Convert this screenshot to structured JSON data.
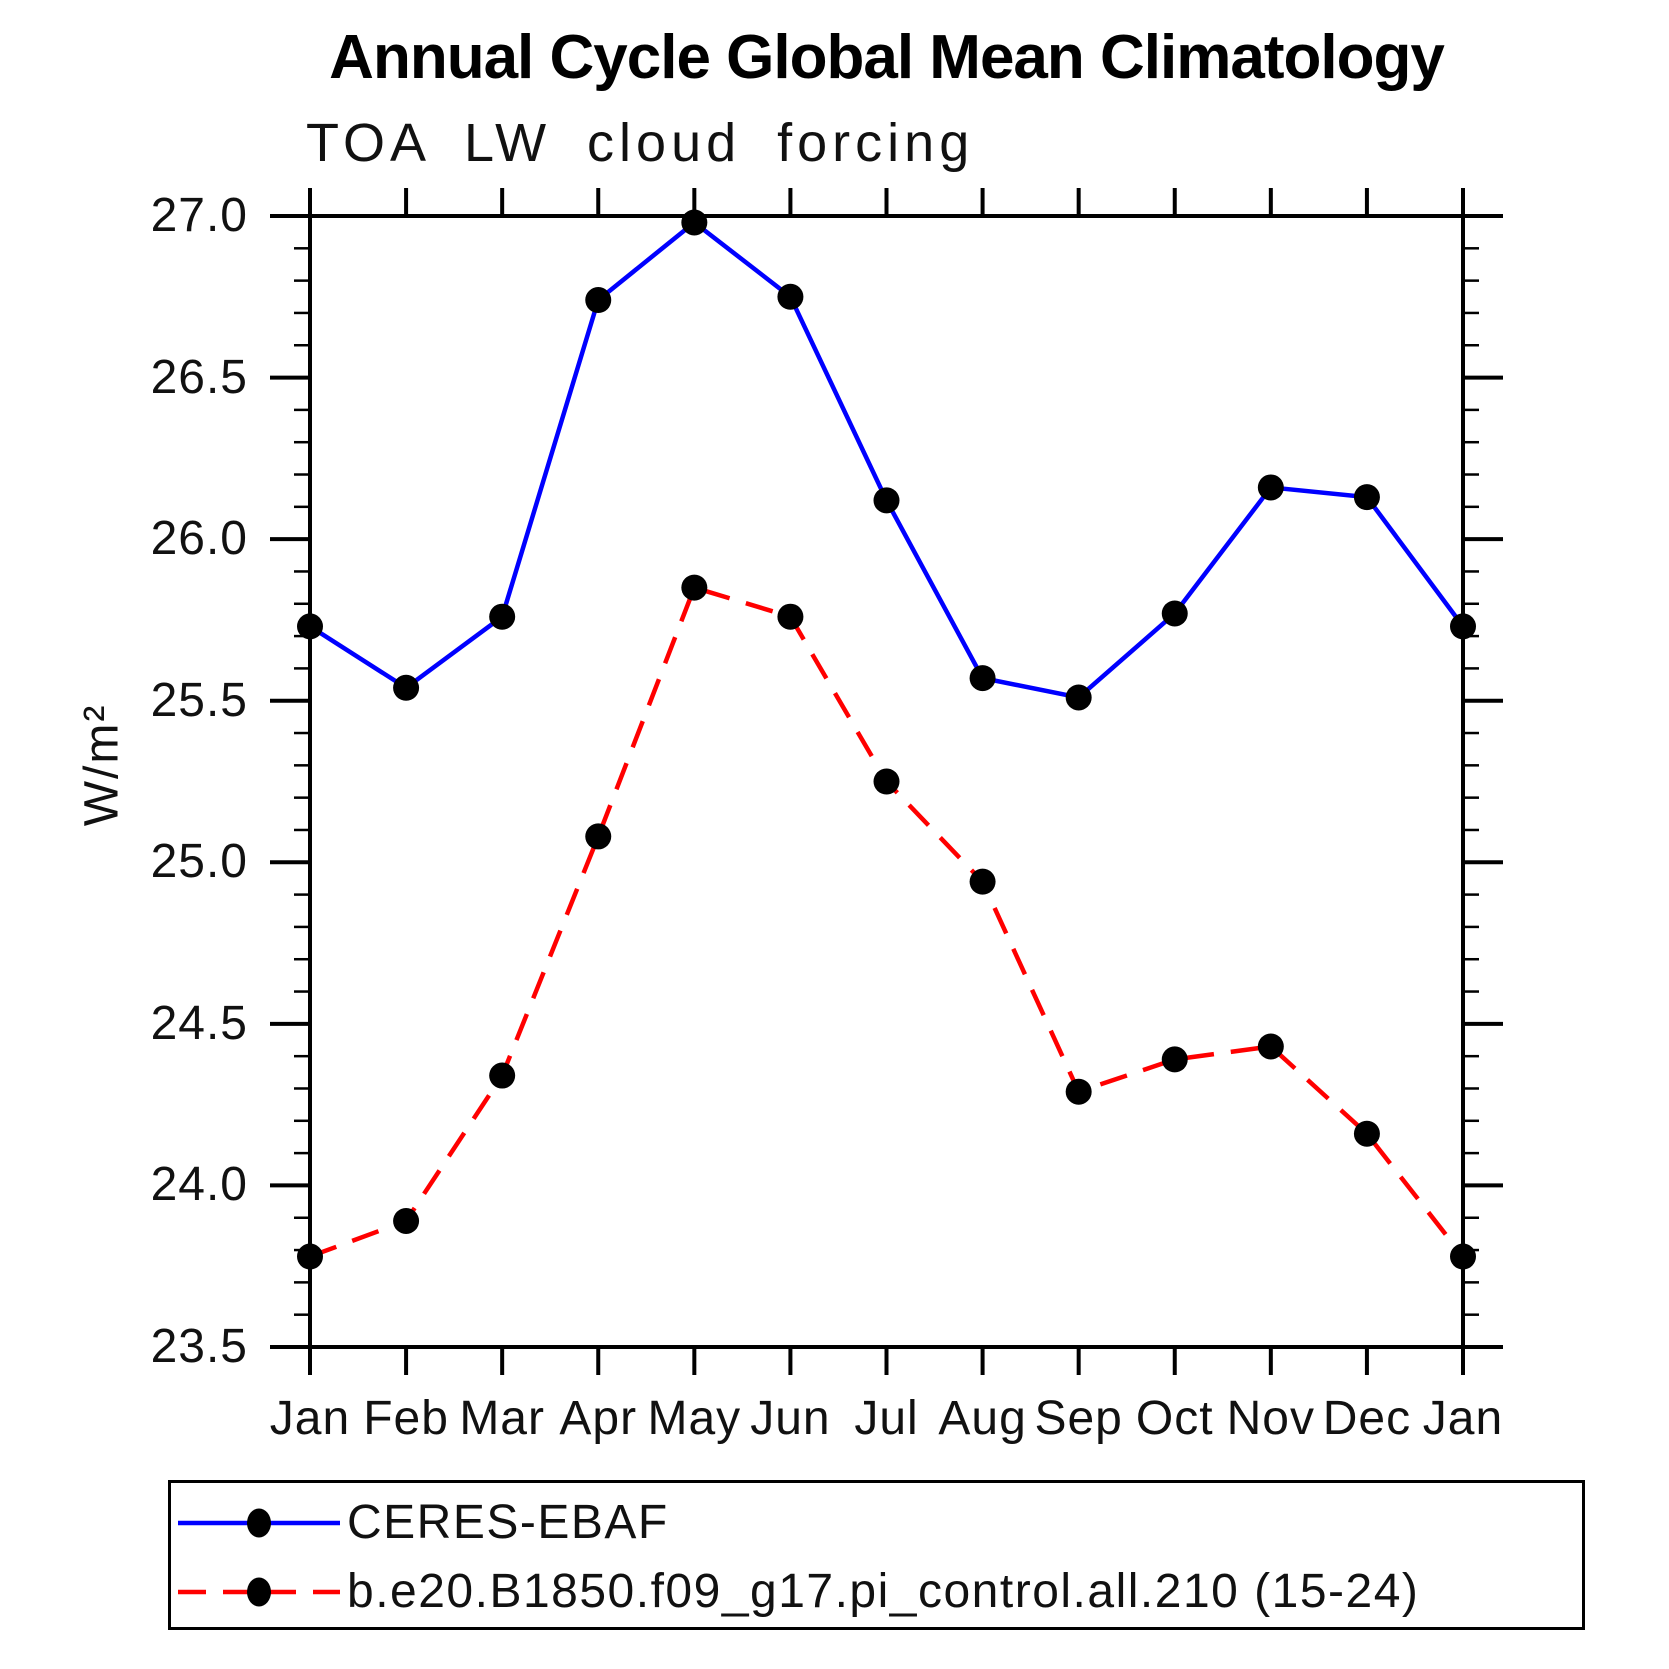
{
  "chart_data": {
    "type": "line",
    "title": "Annual Cycle Global Mean Climatology",
    "subtitle": "TOA LW cloud forcing",
    "ylabel": "W/m²",
    "categories": [
      "Jan",
      "Feb",
      "Mar",
      "Apr",
      "May",
      "Jun",
      "Jul",
      "Aug",
      "Sep",
      "Oct",
      "Nov",
      "Dec",
      "Jan"
    ],
    "ylim": [
      23.5,
      27.0
    ],
    "ytick_labels": [
      "27.0",
      "26.5",
      "26.0",
      "25.5",
      "25.0",
      "24.5",
      "24.0",
      "23.5"
    ],
    "ytick_step": 0.5,
    "yminor_step": 0.1,
    "grid": false,
    "legend_position": "bottom",
    "frame_color": "#000000",
    "marker_color": "#000000",
    "series": [
      {
        "name": "CERES-EBAF",
        "color": "#0000ff",
        "line_style": "solid",
        "marker": "filled-circle",
        "values": [
          25.73,
          25.54,
          25.76,
          26.74,
          26.98,
          26.75,
          26.12,
          25.57,
          25.51,
          25.77,
          26.16,
          26.13,
          25.73
        ]
      },
      {
        "name": "b.e20.B1850.f09_g17.pi_control.all.210 (15-24)",
        "color": "#ff0000",
        "line_style": "dashed",
        "marker": "filled-circle",
        "values": [
          23.78,
          23.89,
          24.34,
          25.08,
          25.85,
          25.76,
          25.25,
          24.94,
          24.29,
          24.39,
          24.43,
          24.16,
          23.78
        ]
      }
    ]
  }
}
